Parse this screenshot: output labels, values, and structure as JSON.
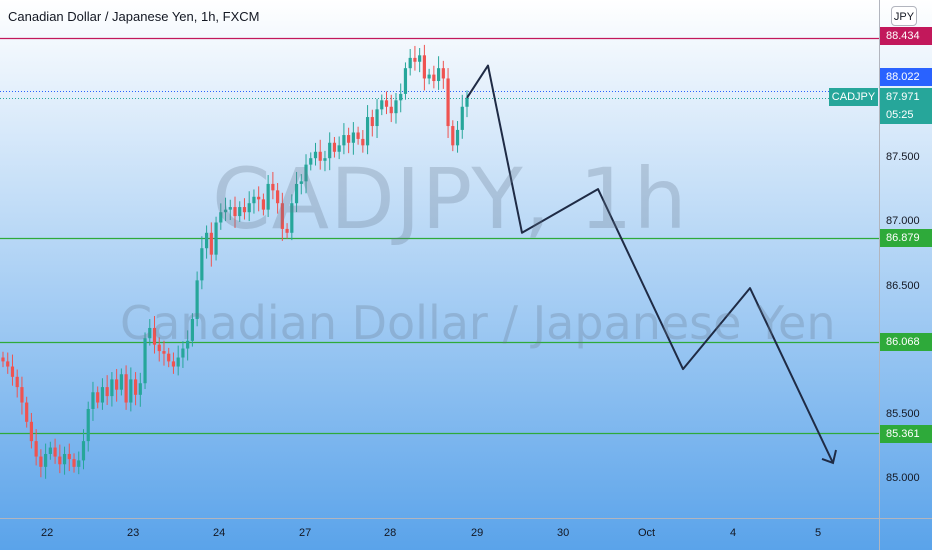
{
  "header": {
    "title": "Canadian Dollar / Japanese Yen, 1h, FXCM"
  },
  "watermark": {
    "symbol": "CADJPY, 1h",
    "description": "Canadian Dollar / Japanese Yen"
  },
  "currency_badge": "JPY",
  "colors": {
    "bg_top": "#ffffff",
    "bg_bottom": "#5aa3ea",
    "up": "#26a69a",
    "down": "#ef5350",
    "resistance": "#c2185b",
    "support": "#2eaa3a",
    "projection": "#1f2b45",
    "last_price": "#2962ff"
  },
  "chart_data": {
    "type": "candlestick",
    "symbol": "CADJPY",
    "timeframe": "1h",
    "source": "FXCM",
    "y_axis": {
      "min": 84.9,
      "max": 88.7,
      "ticks": [
        "87.500",
        "87.000",
        "86.500",
        "85.500",
        "85.000"
      ]
    },
    "x_axis": {
      "ticks": [
        "22",
        "23",
        "24",
        "27",
        "28",
        "29",
        "30",
        "Oct",
        "4",
        "5"
      ]
    },
    "horizontal_lines": [
      {
        "price": 88.434,
        "label": "88.434",
        "kind": "resistance"
      },
      {
        "price": 86.879,
        "label": "86.879",
        "kind": "support"
      },
      {
        "price": 86.068,
        "label": "86.068",
        "kind": "support"
      },
      {
        "price": 85.361,
        "label": "85.361",
        "kind": "support"
      }
    ],
    "price_tags": {
      "last_line": "88.022",
      "symbol": "CADJPY",
      "current": "87.971",
      "countdown": "05:25"
    },
    "candles_close": [
      85.92,
      85.88,
      85.8,
      85.72,
      85.6,
      85.45,
      85.3,
      85.18,
      85.1,
      85.2,
      85.25,
      85.18,
      85.12,
      85.2,
      85.16,
      85.1,
      85.15,
      85.3,
      85.55,
      85.68,
      85.6,
      85.72,
      85.65,
      85.78,
      85.7,
      85.82,
      85.6,
      85.78,
      85.66,
      85.75,
      86.1,
      86.18,
      86.05,
      86.0,
      85.98,
      85.92,
      85.88,
      85.95,
      86.02,
      86.08,
      86.25,
      86.55,
      86.8,
      86.92,
      86.75,
      87.0,
      87.08,
      87.1,
      87.12,
      87.05,
      87.12,
      87.08,
      87.15,
      87.2,
      87.18,
      87.1,
      87.3,
      87.25,
      87.15,
      86.95,
      86.92,
      87.15,
      87.3,
      87.32,
      87.45,
      87.5,
      87.55,
      87.48,
      87.5,
      87.62,
      87.55,
      87.6,
      87.68,
      87.62,
      87.7,
      87.65,
      87.6,
      87.82,
      87.75,
      87.88,
      87.95,
      87.9,
      87.85,
      87.95,
      88.0,
      88.2,
      88.28,
      88.25,
      88.3,
      88.12,
      88.15,
      88.1,
      88.2,
      88.12,
      87.75,
      87.6,
      87.72,
      87.9,
      87.97
    ],
    "projection_path": [
      {
        "x_label": "28",
        "y": 87.97
      },
      {
        "x_label": "29",
        "y": 88.22
      },
      {
        "x_label": "29",
        "y": 86.92
      },
      {
        "x_label": "30",
        "y": 87.26
      },
      {
        "x_label": "Oct",
        "y": 85.86
      },
      {
        "x_label": "4",
        "y": 86.49
      },
      {
        "x_label": "5",
        "y": 85.13
      }
    ]
  }
}
